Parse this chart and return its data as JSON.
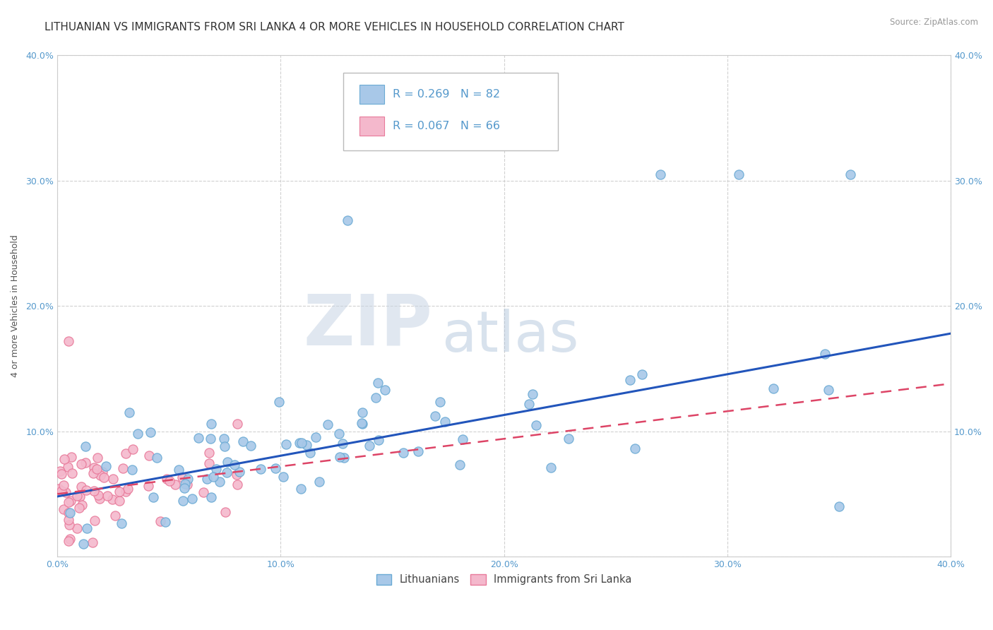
{
  "title": "LITHUANIAN VS IMMIGRANTS FROM SRI LANKA 4 OR MORE VEHICLES IN HOUSEHOLD CORRELATION CHART",
  "source_text": "Source: ZipAtlas.com",
  "ylabel": "4 or more Vehicles in Household",
  "xlim": [
    0.0,
    0.4
  ],
  "ylim": [
    0.0,
    0.4
  ],
  "blue_R": 0.269,
  "blue_N": 82,
  "pink_R": 0.067,
  "pink_N": 66,
  "blue_color": "#a8c8e8",
  "blue_edge": "#6aaad4",
  "pink_color": "#f4b8cc",
  "pink_edge": "#e87a9a",
  "blue_line_color": "#2255bb",
  "pink_line_color": "#dd4466",
  "background_color": "#ffffff",
  "grid_color": "#cccccc",
  "tick_color": "#5599cc",
  "title_color": "#333333",
  "watermark_color": "#d0d8e8",
  "blue_line_start_y": 0.048,
  "blue_line_end_y": 0.178,
  "pink_line_start_y": 0.05,
  "pink_line_end_y": 0.138,
  "title_fontsize": 11,
  "axis_label_fontsize": 9,
  "tick_fontsize": 9
}
